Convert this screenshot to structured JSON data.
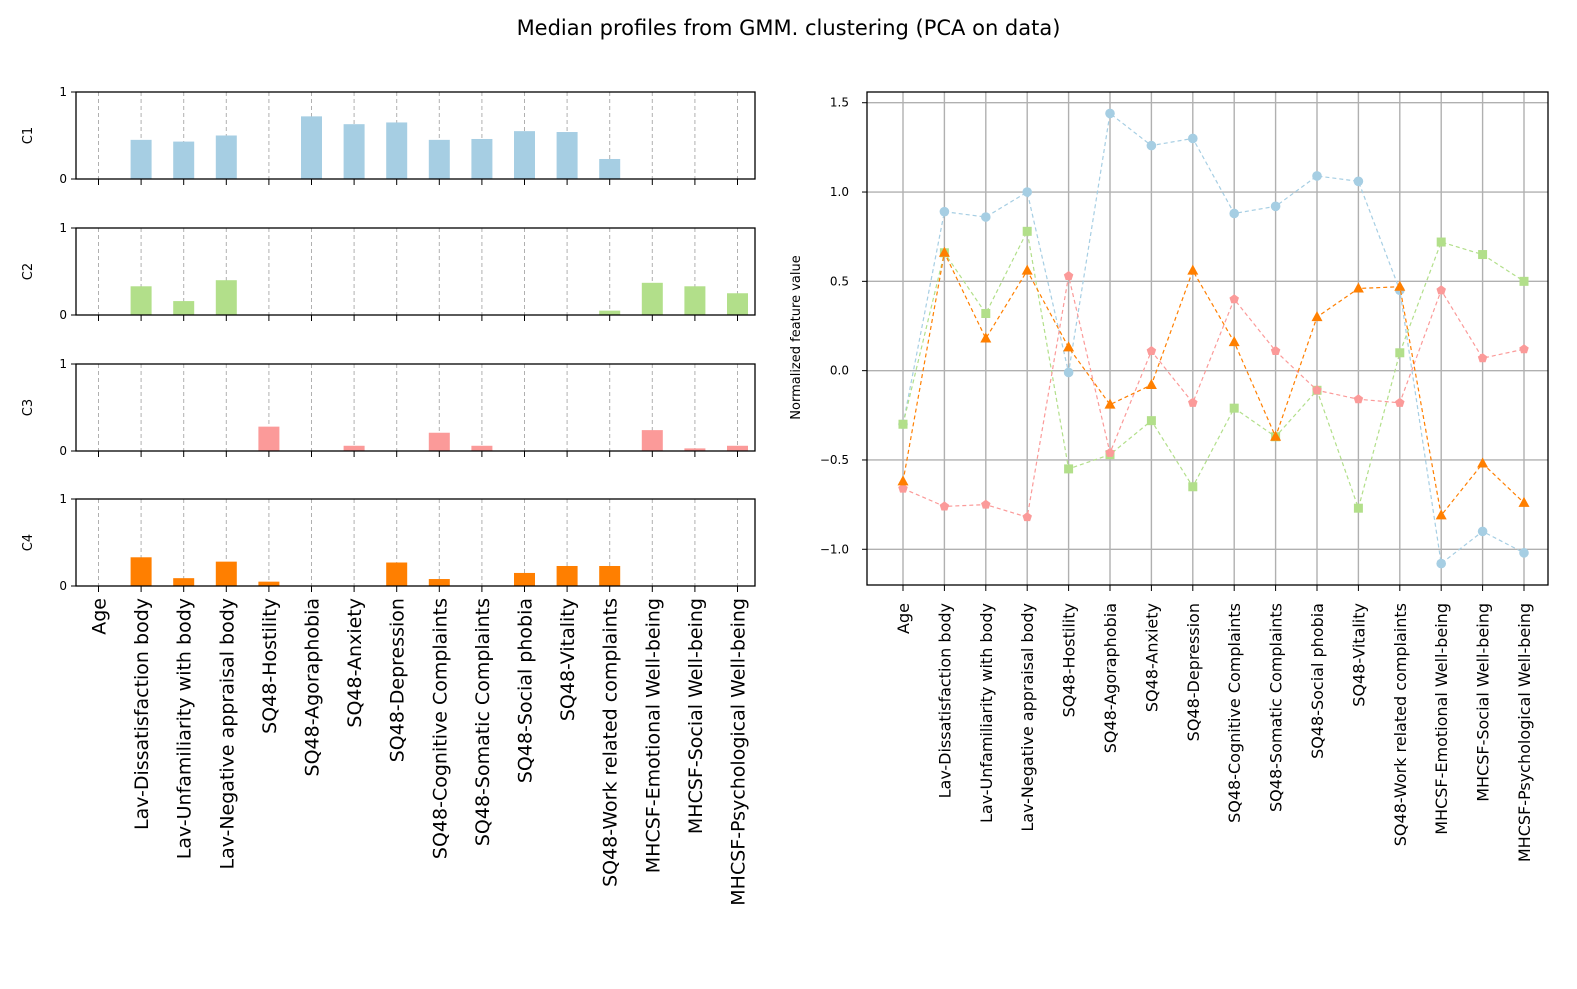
{
  "title": "Median profiles from GMM. clustering (PCA on data)",
  "colors": {
    "C1": "#a6cee3",
    "C2": "#b2df8a",
    "C3": "#fb9a99",
    "C4": "#ff7f00"
  },
  "chart_data": [
    {
      "type": "bar",
      "categories": [
        "Age",
        "Lav-Dissatisfaction body",
        "Lav-Unfamiliarity with body",
        "Lav-Negative appraisal body",
        "SQ48-Hostility",
        "SQ48-Agoraphobia",
        "SQ48-Anxiety",
        "SQ48-Depression",
        "SQ48-Cognitive Complaints",
        "SQ48-Somatic Complaints",
        "SQ48-Social phobia",
        "SQ48-Vitality",
        "SQ48-Work related complaints",
        "MHCSF-Emotional Well-being",
        "MHCSF-Social Well-being",
        "MHCSF-Psychological Well-being"
      ],
      "ylim": [
        0,
        1
      ],
      "yticks": [
        "0",
        "1"
      ],
      "grid": "vertical dashed",
      "panels": [
        {
          "ylabel": "C1",
          "color": "#a6cee3",
          "values": [
            0,
            0.45,
            0.43,
            0.5,
            0,
            0.72,
            0.63,
            0.65,
            0.45,
            0.46,
            0.55,
            0.54,
            0.23,
            0,
            0,
            0
          ]
        },
        {
          "ylabel": "C2",
          "color": "#b2df8a",
          "values": [
            0,
            0.33,
            0.16,
            0.4,
            0,
            0,
            0,
            0,
            0,
            0,
            0,
            0,
            0.05,
            0.37,
            0.33,
            0.25
          ]
        },
        {
          "ylabel": "C3",
          "color": "#fb9a99",
          "values": [
            0,
            0,
            0,
            0,
            0.28,
            0,
            0.06,
            0,
            0.21,
            0.06,
            0,
            0,
            0,
            0.24,
            0.03,
            0.06
          ]
        },
        {
          "ylabel": "C4",
          "color": "#ff7f00",
          "values": [
            0,
            0.33,
            0.09,
            0.28,
            0.05,
            0,
            0,
            0.27,
            0.08,
            0,
            0.15,
            0.23,
            0.23,
            0,
            0,
            0
          ]
        }
      ]
    },
    {
      "type": "line",
      "x": [
        "Age",
        "Lav-Dissatisfaction body",
        "Lav-Unfamiliarity with body",
        "Lav-Negative appraisal body",
        "SQ48-Hostility",
        "SQ48-Agoraphobia",
        "SQ48-Anxiety",
        "SQ48-Depression",
        "SQ48-Cognitive Complaints",
        "SQ48-Somatic Complaints",
        "SQ48-Social phobia",
        "SQ48-Vitality",
        "SQ48-Work related complaints",
        "MHCSF-Emotional Well-being",
        "MHCSF-Social Well-being",
        "MHCSF-Psychological Well-being"
      ],
      "ylabel": "Normalized feature value",
      "xlabel": "",
      "ylim": [
        -1.2,
        1.56
      ],
      "yticks": [
        -1.0,
        -0.5,
        0.0,
        0.5,
        1.0,
        1.5
      ],
      "ytick_labels": [
        "−1.0",
        "−0.5",
        "0.0",
        "0.5",
        "1.0",
        "1.5"
      ],
      "grid": true,
      "line_style": "dashed",
      "series": [
        {
          "color": "#a6cee3",
          "marker": "circle",
          "values": [
            -0.3,
            0.89,
            0.86,
            1.0,
            -0.01,
            1.44,
            1.26,
            1.3,
            0.88,
            0.92,
            1.09,
            1.06,
            0.45,
            -1.08,
            -0.9,
            -1.02
          ]
        },
        {
          "color": "#b2df8a",
          "marker": "square",
          "values": [
            -0.3,
            0.66,
            0.32,
            0.78,
            -0.55,
            -0.47,
            -0.28,
            -0.65,
            -0.21,
            -0.37,
            -0.11,
            -0.77,
            0.1,
            0.72,
            0.65,
            0.5
          ]
        },
        {
          "color": "#fb9a99",
          "marker": "pentagon",
          "values": [
            -0.66,
            -0.76,
            -0.75,
            -0.82,
            0.53,
            -0.46,
            0.11,
            -0.18,
            0.4,
            0.11,
            -0.11,
            -0.16,
            -0.18,
            0.45,
            0.07,
            0.12
          ]
        },
        {
          "color": "#ff7f00",
          "marker": "triangle",
          "values": [
            -0.62,
            0.66,
            0.18,
            0.56,
            0.13,
            -0.19,
            -0.08,
            0.56,
            0.16,
            -0.37,
            0.3,
            0.46,
            0.47,
            -0.81,
            -0.52,
            -0.74
          ]
        }
      ]
    }
  ]
}
